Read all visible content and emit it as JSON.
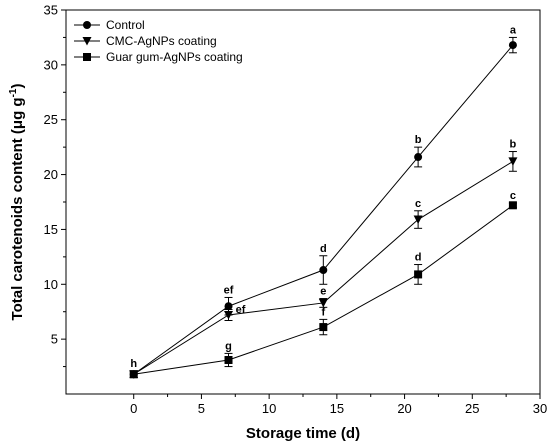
{
  "chart_data": {
    "type": "line",
    "title": "",
    "xlabel": "Storage time (d)",
    "ylabel_main": "Total carotenoids content (",
    "ylabel_unit": "μg g",
    "ylabel_sup": "-1",
    "ylabel_end": ")",
    "xlim": [
      -5,
      30
    ],
    "ylim": [
      0,
      35
    ],
    "xticks": [
      0,
      5,
      10,
      15,
      20,
      25,
      30
    ],
    "yticks": [
      5,
      10,
      15,
      20,
      25,
      30,
      35
    ],
    "legend_position": "top-left",
    "grid": false,
    "x": [
      0,
      7,
      14,
      21,
      28
    ],
    "series": [
      {
        "name": "Control",
        "marker": "circle",
        "values": [
          1.8,
          8.0,
          11.3,
          21.6,
          31.8
        ],
        "errors": [
          0.3,
          0.8,
          1.3,
          0.9,
          0.7
        ],
        "labels": [
          "h",
          "ef",
          "d",
          "b",
          "a"
        ]
      },
      {
        "name": "CMC-AgNPs coating",
        "marker": "triangle-down",
        "values": [
          1.8,
          7.2,
          8.3,
          15.9,
          21.2
        ],
        "errors": [
          0.3,
          0.5,
          0.4,
          0.8,
          0.9
        ],
        "labels": [
          "",
          "ef",
          "e",
          "c",
          "b"
        ]
      },
      {
        "name": "Guar gum-AgNPs coating",
        "marker": "square",
        "values": [
          1.8,
          3.1,
          6.1,
          10.9,
          17.2
        ],
        "errors": [
          0.3,
          0.6,
          0.7,
          0.9,
          0.2
        ],
        "labels": [
          "",
          "g",
          "f",
          "d",
          "c"
        ]
      }
    ]
  }
}
